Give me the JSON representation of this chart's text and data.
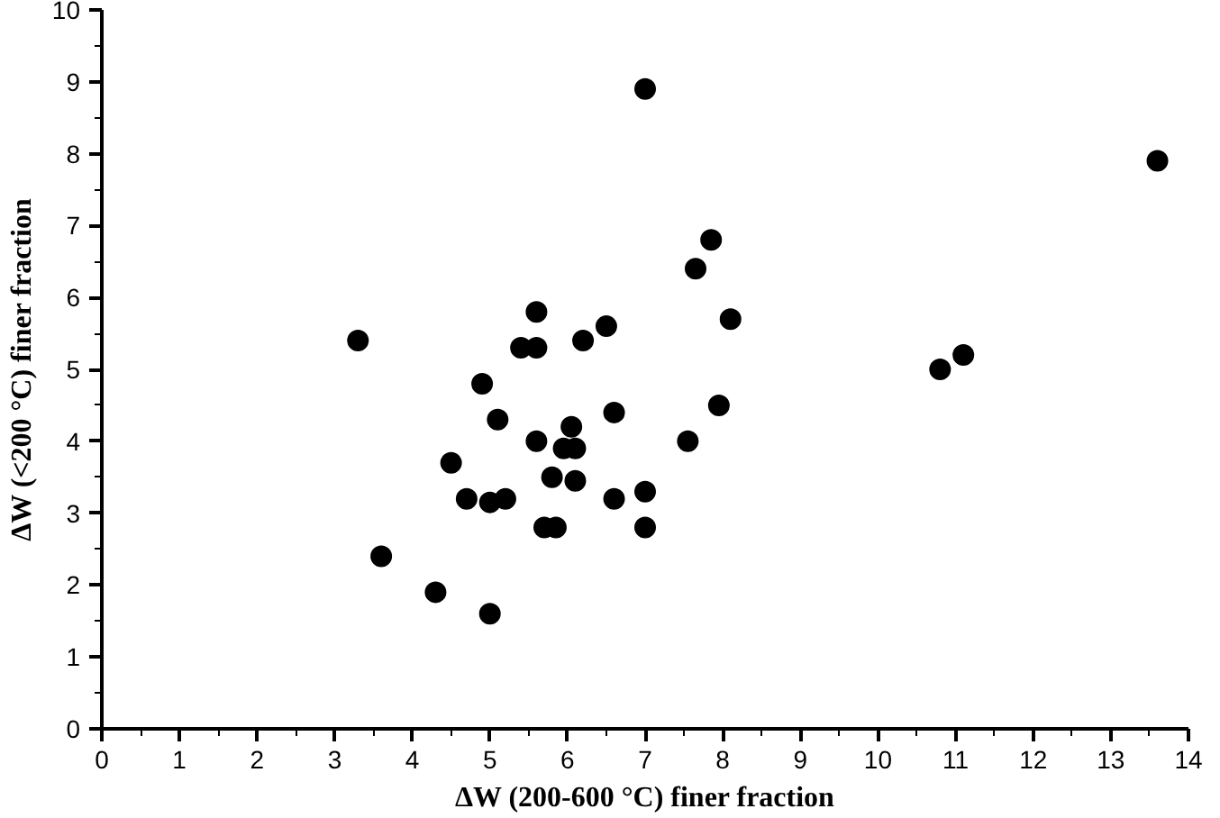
{
  "chart_data": {
    "type": "scatter",
    "xlabel": "ΔW (200-600 °C) finer fraction",
    "ylabel": "ΔW (<200 °C) finer fraction",
    "x": [
      3.3,
      3.6,
      4.3,
      4.5,
      4.7,
      4.9,
      5.0,
      5.0,
      5.1,
      5.2,
      5.4,
      5.6,
      5.6,
      5.6,
      5.7,
      5.8,
      5.85,
      5.95,
      6.1,
      6.05,
      6.1,
      6.2,
      6.5,
      6.6,
      6.6,
      7.0,
      7.0,
      7.0,
      7.55,
      7.65,
      7.85,
      7.95,
      8.1,
      10.8,
      11.1,
      13.6
    ],
    "series": [
      {
        "color": "#000000",
        "values": [
          5.4,
          2.4,
          1.9,
          3.7,
          3.2,
          4.8,
          3.15,
          1.6,
          4.3,
          3.2,
          5.3,
          5.8,
          5.3,
          4.0,
          2.8,
          3.5,
          2.8,
          3.9,
          3.9,
          4.2,
          3.45,
          5.4,
          5.6,
          4.4,
          3.2,
          8.9,
          3.3,
          2.8,
          4.0,
          6.4,
          6.8,
          4.5,
          5.7,
          5.0,
          5.2,
          7.9
        ]
      }
    ],
    "xlim": [
      0,
      14
    ],
    "ylim": [
      0,
      10
    ],
    "xticks": [
      0,
      1,
      2,
      3,
      4,
      5,
      6,
      7,
      8,
      9,
      10,
      11,
      12,
      13,
      14
    ],
    "yticks": [
      0,
      1,
      2,
      3,
      4,
      5,
      6,
      7,
      8,
      9,
      10
    ],
    "marker": "circle",
    "grid": false
  }
}
